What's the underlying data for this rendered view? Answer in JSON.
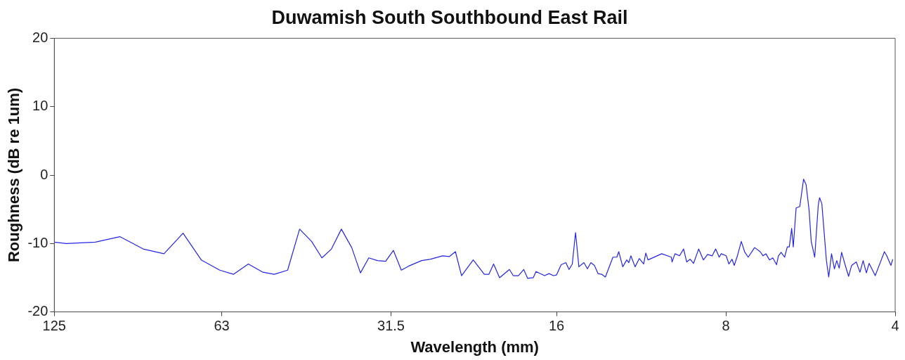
{
  "chart_data": {
    "type": "line",
    "title": "Duwamish South Southbound East Rail",
    "xlabel": "Wavelength (mm)",
    "ylabel": "Roughness (dB re 1um)",
    "log": "x",
    "marker": "none",
    "color": "#2424e6",
    "xlim": [
      125,
      4
    ],
    "ylim": [
      -20,
      20
    ],
    "xticks": [
      125,
      63,
      31.5,
      16,
      8,
      4
    ],
    "yticks": [
      -20,
      -10,
      0,
      10,
      20
    ],
    "x": [
      125,
      119.1,
      105.7,
      95.6,
      86.9,
      79.8,
      73.8,
      68.5,
      63.5,
      60.0,
      56.5,
      53.2,
      50.8,
      48.1,
      45.8,
      43.6,
      41.8,
      40.2,
      38.6,
      37.0,
      35.7,
      34.5,
      33.3,
      32.2,
      31.2,
      30.2,
      29.3,
      27.8,
      26.8,
      25.5,
      24.8,
      24.2,
      23.6,
      22.5,
      21.5,
      21.1,
      20.7,
      20.2,
      19.4,
      19.1,
      18.7,
      18.3,
      18.0,
      17.6,
      17.4,
      16.8,
      16.5,
      16.2,
      16.0,
      15.7,
      15.4,
      15.2,
      15.0,
      14.8,
      14.6,
      14.3,
      14.1,
      13.9,
      13.7,
      13.5,
      13.3,
      13.1,
      12.7,
      12.5,
      12.4,
      12.2,
      12.0,
      11.9,
      11.8,
      11.6,
      11.4,
      11.2,
      11.1,
      11.0,
      10.4,
      10.0,
      9.97,
      9.85,
      9.67,
      9.51,
      9.39,
      9.26,
      9.13,
      8.94,
      8.77,
      8.62,
      8.46,
      8.34,
      8.22,
      8.15,
      7.99,
      7.9,
      7.8,
      7.73,
      7.63,
      7.51,
      7.4,
      7.3,
      7.11,
      6.95,
      6.87,
      6.79,
      6.69,
      6.6,
      6.5,
      6.45,
      6.38,
      6.29,
      6.22,
      6.17,
      6.11,
      6.07,
      6.0,
      5.91,
      5.82,
      5.76,
      5.69,
      5.64,
      5.56,
      5.48,
      5.45,
      5.4,
      5.3,
      5.25,
      5.19,
      5.13,
      5.08,
      5.03,
      4.98,
      4.91,
      4.84,
      4.78,
      4.69,
      4.62,
      4.56,
      4.5,
      4.45,
      4.34,
      4.28,
      4.18,
      4.14,
      4.07,
      4.04
    ],
    "values": [
      -9.8,
      -10.0,
      -9.8,
      -9.0,
      -10.8,
      -11.5,
      -8.5,
      -12.4,
      -13.9,
      -14.5,
      -13.0,
      -14.2,
      -14.5,
      -13.9,
      -7.9,
      -9.7,
      -12.1,
      -10.8,
      -7.9,
      -10.6,
      -14.3,
      -12.1,
      -12.5,
      -12.6,
      -11.0,
      -13.9,
      -13.3,
      -12.5,
      -12.3,
      -11.8,
      -11.9,
      -11.2,
      -14.7,
      -12.4,
      -14.5,
      -14.5,
      -13.0,
      -15.0,
      -13.8,
      -14.7,
      -14.7,
      -13.8,
      -15.1,
      -15.0,
      -14.1,
      -14.7,
      -14.4,
      -14.7,
      -14.6,
      -13.1,
      -12.8,
      -13.8,
      -13.0,
      -8.4,
      -13.4,
      -12.8,
      -13.7,
      -12.8,
      -13.2,
      -14.4,
      -14.5,
      -14.9,
      -12.0,
      -12.0,
      -11.2,
      -13.4,
      -12.4,
      -12.8,
      -11.8,
      -13.4,
      -12.2,
      -13.0,
      -11.4,
      -12.4,
      -11.5,
      -12.0,
      -12.7,
      -11.5,
      -11.8,
      -10.8,
      -12.7,
      -12.3,
      -12.9,
      -10.8,
      -12.4,
      -11.6,
      -11.8,
      -10.8,
      -12.0,
      -11.5,
      -11.8,
      -13.0,
      -12.3,
      -13.2,
      -11.8,
      -9.7,
      -11.3,
      -12.0,
      -10.6,
      -11.2,
      -11.8,
      -11.5,
      -12.4,
      -12.1,
      -13.1,
      -11.8,
      -11.3,
      -12.0,
      -10.5,
      -10.5,
      -7.8,
      -10.5,
      -4.8,
      -4.6,
      -0.6,
      -1.4,
      -5.1,
      -9.7,
      -12.0,
      -4.4,
      -3.3,
      -4.2,
      -12.5,
      -14.9,
      -11.5,
      -13.7,
      -12.5,
      -13.6,
      -11.3,
      -13.1,
      -14.8,
      -13.2,
      -12.7,
      -14.2,
      -12.5,
      -14.3,
      -12.9,
      -14.7,
      -13.4,
      -11.2,
      -11.8,
      -13.2,
      -12.3
    ]
  }
}
